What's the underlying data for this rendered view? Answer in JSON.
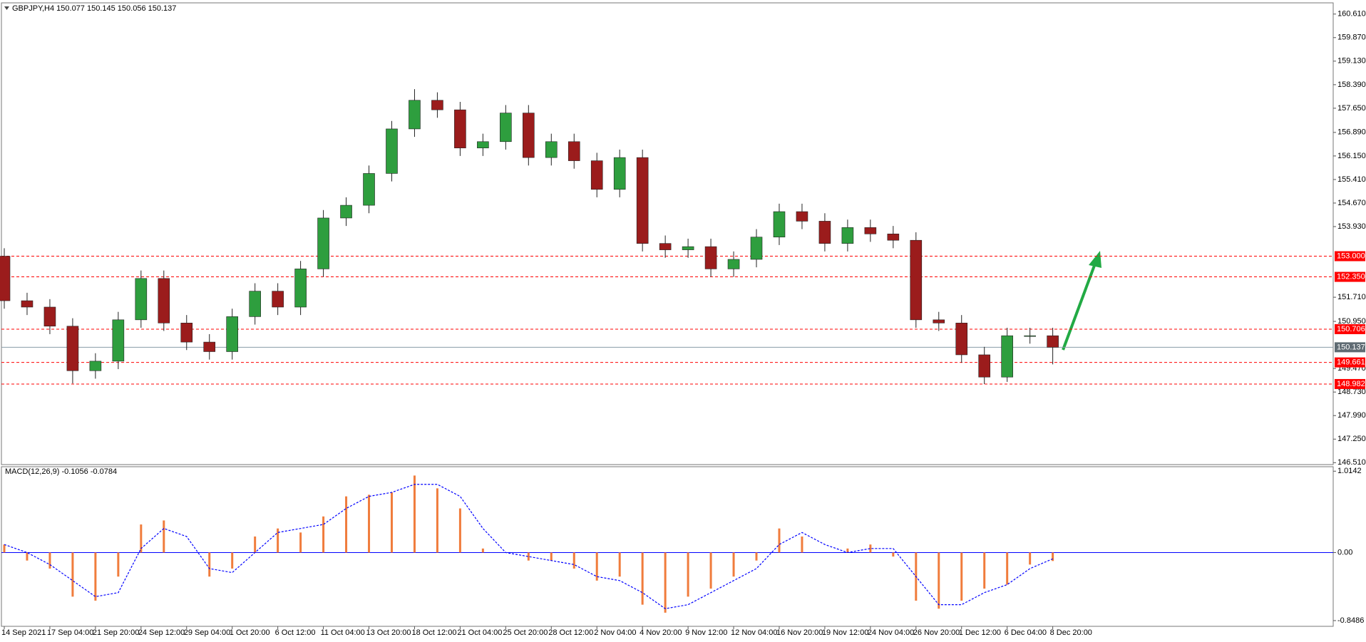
{
  "chart_data": [
    {
      "type": "candlestick",
      "title": "GBPJPY,H4  150.077 150.145 150.056 150.137",
      "x": [
        "14 Sep 2021",
        null,
        "17 Sep 04:00",
        null,
        "21 Sep 20:00",
        null,
        "24 Sep 12:00",
        null,
        "29 Sep 04:00",
        null,
        "1 Oct 20:00",
        null,
        "6 Oct 12:00",
        null,
        "11 Oct 04:00",
        null,
        "13 Oct 20:00",
        null,
        "18 Oct 12:00",
        null,
        "21 Oct 04:00",
        null,
        "25 Oct 20:00",
        null,
        "28 Oct 12:00",
        null,
        "2 Nov 04:00",
        null,
        "4 Nov 20:00",
        null,
        "9 Nov 12:00",
        null,
        "12 Nov 04:00",
        null,
        "16 Nov 20:00",
        null,
        "19 Nov 12:00",
        null,
        "24 Nov 04:00",
        null,
        "26 Nov 20:00",
        null,
        "1 Dec 12:00",
        null,
        "6 Dec 04:00",
        null,
        "8 Dec 20:00"
      ],
      "open": [
        153.0,
        151.6,
        151.4,
        150.8,
        149.4,
        149.7,
        151.0,
        152.3,
        150.9,
        150.3,
        150.0,
        151.1,
        151.9,
        151.4,
        152.6,
        154.2,
        154.6,
        155.6,
        157.0,
        157.9,
        157.6,
        156.4,
        156.6,
        157.5,
        156.1,
        156.6,
        156.0,
        155.1,
        156.1,
        153.4,
        153.2,
        153.3,
        152.6,
        152.9,
        153.6,
        154.4,
        154.1,
        153.4,
        153.9,
        153.7,
        153.5,
        151.0,
        150.9,
        149.9,
        149.2,
        150.5,
        150.5
      ],
      "high": [
        153.25,
        151.85,
        151.65,
        151.05,
        149.95,
        151.25,
        152.55,
        152.55,
        151.15,
        150.55,
        151.35,
        152.15,
        152.15,
        152.85,
        154.45,
        154.85,
        155.85,
        157.25,
        158.25,
        158.15,
        157.85,
        156.85,
        157.75,
        157.75,
        156.85,
        156.85,
        156.25,
        156.35,
        156.35,
        153.65,
        153.55,
        153.55,
        153.15,
        153.85,
        154.65,
        154.65,
        154.35,
        154.15,
        154.15,
        153.95,
        153.75,
        151.25,
        151.15,
        150.15,
        150.75,
        150.75,
        150.75
      ],
      "low": [
        151.35,
        151.15,
        150.55,
        149.0,
        149.15,
        149.45,
        150.75,
        150.65,
        150.05,
        149.75,
        149.75,
        150.85,
        151.15,
        151.15,
        152.35,
        153.95,
        154.35,
        155.35,
        156.75,
        157.35,
        156.15,
        156.15,
        156.35,
        155.85,
        155.85,
        155.75,
        154.85,
        154.85,
        153.15,
        152.95,
        152.95,
        152.35,
        152.35,
        152.65,
        153.35,
        153.85,
        153.15,
        153.15,
        153.45,
        153.25,
        150.75,
        150.65,
        149.65,
        148.98,
        149.05,
        150.25,
        149.6
      ],
      "close": [
        151.6,
        151.4,
        150.8,
        149.4,
        149.7,
        151.0,
        152.3,
        150.9,
        150.3,
        150.0,
        151.1,
        151.9,
        151.4,
        152.6,
        154.2,
        154.6,
        155.6,
        157.0,
        157.9,
        157.6,
        156.4,
        156.6,
        157.5,
        156.1,
        156.6,
        156.0,
        155.1,
        156.1,
        153.4,
        153.2,
        153.3,
        152.6,
        152.9,
        153.6,
        154.4,
        154.1,
        153.4,
        153.9,
        153.7,
        153.5,
        151.0,
        150.9,
        149.9,
        149.2,
        150.5,
        150.5,
        150.137
      ],
      "up_color": "#2e9e3e",
      "down_color": "#9b1c1c",
      "ylim": [
        146.45,
        160.94
      ],
      "yticks": [
        {
          "value": 160.61,
          "label": "160.610"
        },
        {
          "value": 159.87,
          "label": "159.870"
        },
        {
          "value": 159.13,
          "label": "159.130"
        },
        {
          "value": 158.39,
          "label": "158.390"
        },
        {
          "value": 157.65,
          "label": "157.650"
        },
        {
          "value": 156.89,
          "label": "156.890"
        },
        {
          "value": 156.15,
          "label": "156.150"
        },
        {
          "value": 155.41,
          "label": "155.410"
        },
        {
          "value": 154.67,
          "label": "154.670"
        },
        {
          "value": 153.93,
          "label": "153.930"
        },
        {
          "value": 151.71,
          "label": "151.710"
        },
        {
          "value": 150.95,
          "label": "150.950"
        },
        {
          "value": 149.47,
          "label": "149.470"
        },
        {
          "value": 148.73,
          "label": "148.730"
        },
        {
          "value": 147.99,
          "label": "147.990"
        },
        {
          "value": 147.25,
          "label": "147.250"
        },
        {
          "value": 146.51,
          "label": "146.510"
        }
      ],
      "levels": [
        {
          "value": 153.0,
          "label": "153.000"
        },
        {
          "value": 152.35,
          "label": "152.350"
        },
        {
          "value": 150.706,
          "label": "150.706"
        },
        {
          "value": 149.661,
          "label": "149.661"
        },
        {
          "value": 148.982,
          "label": "148.982"
        }
      ],
      "level_color": "#ff0000",
      "price_line": {
        "value": 150.137,
        "label": "150.137"
      },
      "price_color": "#8a9ba8"
    },
    {
      "type": "macd",
      "title": "MACD(12,26,9) -0.1056 -0.0784",
      "series": [
        {
          "kind": "bar",
          "color": "#f07c3c",
          "values": [
            0.1,
            -0.1,
            -0.2,
            -0.55,
            -0.6,
            -0.3,
            0.35,
            0.4,
            0.0,
            -0.3,
            -0.2,
            0.2,
            0.3,
            0.25,
            0.45,
            0.7,
            0.72,
            0.75,
            0.96,
            0.8,
            0.55,
            0.05,
            0.0,
            -0.1,
            -0.1,
            -0.2,
            -0.35,
            -0.3,
            -0.65,
            -0.75,
            -0.55,
            -0.45,
            -0.3,
            -0.1,
            0.3,
            0.2,
            0.0,
            0.05,
            0.1,
            -0.05,
            -0.6,
            -0.7,
            -0.6,
            -0.45,
            -0.4,
            -0.15,
            -0.1056
          ]
        },
        {
          "kind": "line",
          "color": "#0000ff",
          "values": [
            0.1,
            0.0,
            -0.15,
            -0.35,
            -0.55,
            -0.5,
            0.05,
            0.3,
            0.2,
            -0.2,
            -0.25,
            0.0,
            0.25,
            0.3,
            0.35,
            0.55,
            0.7,
            0.75,
            0.85,
            0.85,
            0.7,
            0.3,
            0.0,
            -0.05,
            -0.1,
            -0.15,
            -0.3,
            -0.35,
            -0.5,
            -0.7,
            -0.65,
            -0.5,
            -0.35,
            -0.2,
            0.1,
            0.25,
            0.1,
            0.0,
            0.05,
            0.05,
            -0.3,
            -0.65,
            -0.65,
            -0.5,
            -0.4,
            -0.2,
            -0.0784
          ]
        }
      ],
      "ylim": [
        -0.92,
        1.07
      ],
      "yticks": [
        1.0142,
        {
          "value": 0,
          "label": "0.00"
        },
        -0.8486
      ],
      "zero_color": "#0000ff"
    }
  ]
}
